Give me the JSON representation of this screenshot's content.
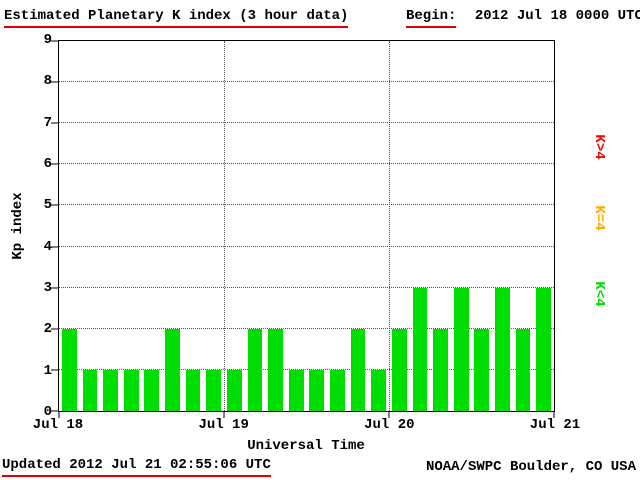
{
  "header": {
    "title": "Estimated Planetary K index (3 hour data)",
    "begin_label": "Begin:",
    "begin_value": "2012 Jul 18 0000 UTC"
  },
  "footer": {
    "updated": "Updated 2012 Jul 21 02:55:06 UTC",
    "source": "NOAA/SWPC Boulder, CO USA"
  },
  "chart_data": {
    "type": "bar",
    "title": "Estimated Planetary K index (3 hour data)",
    "xlabel": "Universal Time",
    "ylabel": "Kp index",
    "ylim": [
      0,
      9
    ],
    "y_ticks": [
      0,
      1,
      2,
      3,
      4,
      5,
      6,
      7,
      8,
      9
    ],
    "x_ticks": [
      "Jul 18",
      "Jul 19",
      "Jul 20",
      "Jul 21"
    ],
    "bar_interval_hours": 3,
    "values": [
      2,
      1,
      1,
      1,
      1,
      2,
      1,
      1,
      1,
      2,
      2,
      1,
      1,
      1,
      2,
      1,
      2,
      3,
      2,
      3,
      2,
      3,
      2,
      3
    ],
    "colors": {
      "low": "#00dd00",
      "mid": "#ffaa00",
      "high": "#ff0000"
    },
    "legend": [
      {
        "label": "K>4",
        "color": "#ff0000"
      },
      {
        "label": "K=4",
        "color": "#ffaa00"
      },
      {
        "label": "K<4",
        "color": "#00dd00"
      }
    ],
    "grid": "dotted horizontal lines at 1-8, dotted vertical lines at day boundaries",
    "legend_position": "right, rotated 90deg"
  }
}
